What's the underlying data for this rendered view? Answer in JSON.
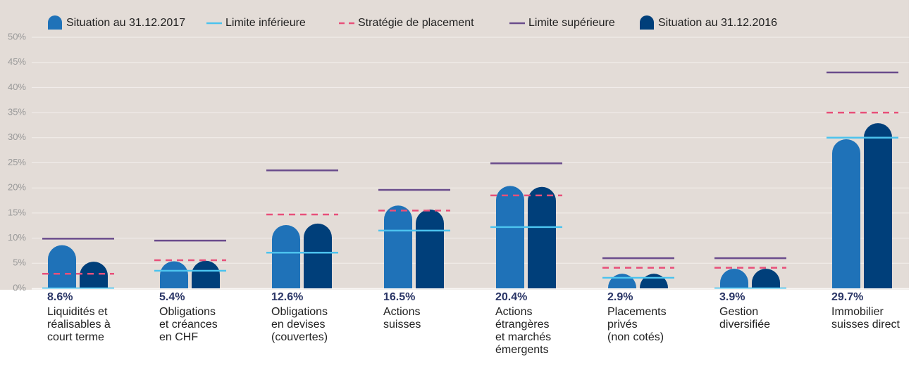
{
  "chart_data": {
    "type": "bar",
    "categories": [
      "Liquidités et\nréalisables à\ncourt terme",
      "Obligations\net créances\nen CHF",
      "Obligations\nen devises\n(couvertes)",
      "Actions\nsuisses",
      "Actions\nétrangères\net marchés\némergents",
      "Placements\nprivés\n(non cotés)",
      "Gestion\ndiversifiée",
      "Immobilier\nsuisses direct"
    ],
    "series": [
      {
        "name": "Situation au 31.12.2017",
        "kind": "bar",
        "color": "#1f72b8",
        "values": [
          8.6,
          5.4,
          12.6,
          16.5,
          20.4,
          2.9,
          3.9,
          29.7
        ],
        "value_labels": [
          "8.6%",
          "5.4%",
          "12.6%",
          "16.5%",
          "20.4%",
          "2.9%",
          "3.9%",
          "29.7%"
        ]
      },
      {
        "name": "Limite inférieure",
        "kind": "line",
        "style": "solid",
        "color": "#4cc3ee",
        "values": [
          0,
          3.5,
          7.1,
          11.5,
          12.2,
          2.1,
          0,
          30
        ]
      },
      {
        "name": "Stratégie de placement",
        "kind": "line",
        "style": "dashed",
        "color": "#e8507a",
        "values": [
          2.9,
          5.6,
          14.7,
          15.5,
          18.5,
          4.1,
          4.1,
          35
        ]
      },
      {
        "name": "Limite supérieure",
        "kind": "line",
        "style": "solid",
        "color": "#6a4c8c",
        "values": [
          9.9,
          9.5,
          23.5,
          19.6,
          24.9,
          6,
          6,
          43
        ]
      },
      {
        "name": "Situation au 31.12.2016",
        "kind": "bar",
        "color": "#003f7a",
        "values": [
          5.3,
          5.5,
          12.9,
          15.7,
          20.2,
          2.9,
          3.9,
          32.9
        ]
      }
    ],
    "ylim": [
      0,
      50
    ],
    "yticks": [
      {
        "value": 0,
        "label": "0%"
      },
      {
        "value": 5,
        "label": "5%"
      },
      {
        "value": 10,
        "label": "10%"
      },
      {
        "value": 15,
        "label": "15%"
      },
      {
        "value": 20,
        "label": "20%"
      },
      {
        "value": 25,
        "label": "25%"
      },
      {
        "value": 30,
        "label": "30%"
      },
      {
        "value": 35,
        "label": "35%"
      },
      {
        "value": 40,
        "label": "40%"
      },
      {
        "value": 45,
        "label": "45%"
      },
      {
        "value": 50,
        "label": "50%"
      }
    ],
    "grid": true,
    "legend": "top",
    "background": "#e3dcd7"
  }
}
